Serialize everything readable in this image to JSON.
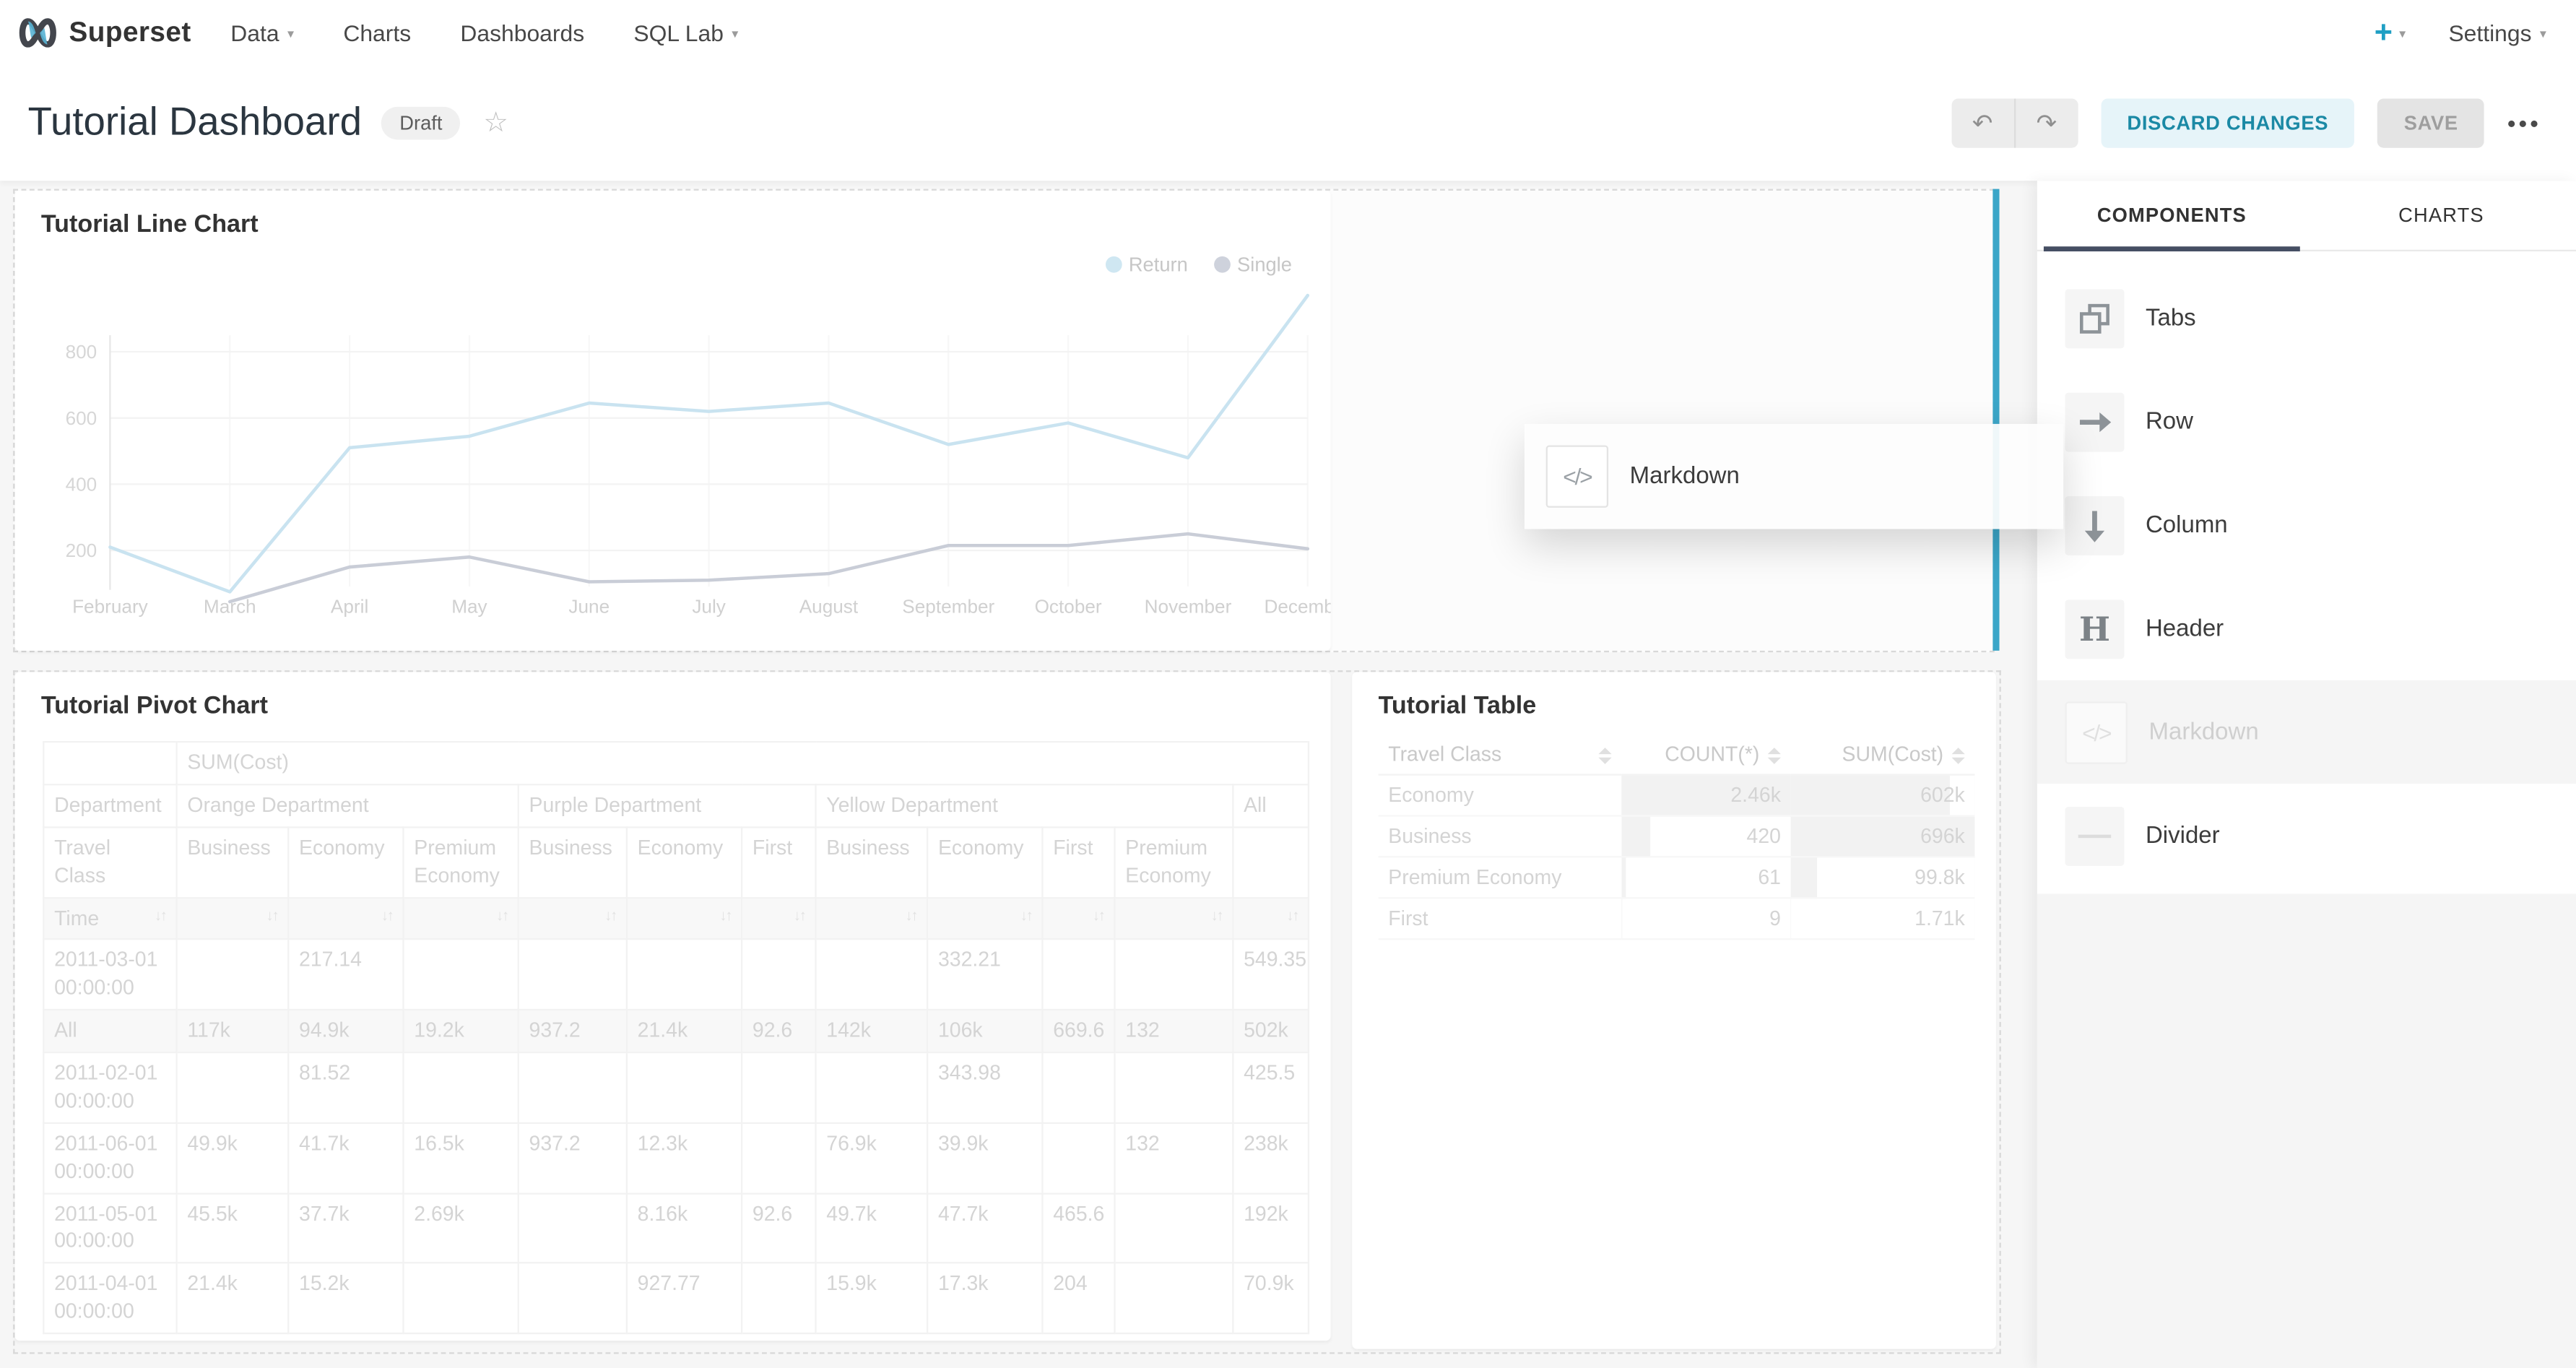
{
  "colors": {
    "accent_teal": "#20a7c9",
    "drop_indicator": "#3ba6c8",
    "tab_underline": "#454e63",
    "return_series": "#c9e3f0",
    "single_series": "#c9cdd7"
  },
  "navbar": {
    "brand": "Superset",
    "menu": [
      {
        "label": "Data",
        "caret": true
      },
      {
        "label": "Charts",
        "caret": false
      },
      {
        "label": "Dashboards",
        "caret": false
      },
      {
        "label": "SQL Lab",
        "caret": true
      }
    ],
    "plus": "+",
    "settings": "Settings"
  },
  "dash_header": {
    "title": "Tutorial Dashboard",
    "status_badge": "Draft",
    "star_glyph": "☆",
    "undo_glyph": "↶",
    "redo_glyph": "↷",
    "discard_label": "DISCARD CHANGES",
    "save_label": "SAVE",
    "more_glyph": "•••"
  },
  "sidebar": {
    "tabs": [
      {
        "label": "COMPONENTS",
        "active": true
      },
      {
        "label": "CHARTS",
        "active": false
      }
    ],
    "items": [
      {
        "label": "Tabs",
        "icon": "tabs-icon",
        "disabled": false
      },
      {
        "label": "Row",
        "icon": "row-arrow-icon",
        "disabled": false
      },
      {
        "label": "Column",
        "icon": "column-arrow-icon",
        "disabled": false
      },
      {
        "label": "Header",
        "icon": "header-icon",
        "disabled": false
      },
      {
        "label": "Markdown",
        "icon": "markdown-code-icon",
        "disabled": true
      },
      {
        "label": "Divider",
        "icon": "divider-icon",
        "disabled": false
      }
    ]
  },
  "drag_ghost": {
    "label": "Markdown",
    "icon": "markdown-code-icon",
    "code_glyph": "</>"
  },
  "line_chart": {
    "title": "Tutorial Line Chart",
    "legend": [
      {
        "label": "Return",
        "color": "#c9e3f0"
      },
      {
        "label": "Single",
        "color": "#c9cdd7"
      }
    ],
    "chart_data": {
      "type": "line",
      "x": [
        "February",
        "March",
        "April",
        "May",
        "June",
        "July",
        "August",
        "September",
        "October",
        "November",
        "December"
      ],
      "series": [
        {
          "name": "Return",
          "values": [
            210,
            75,
            510,
            545,
            645,
            620,
            645,
            520,
            585,
            480,
            970
          ]
        },
        {
          "name": "Single",
          "values": [
            null,
            45,
            150,
            180,
            105,
            110,
            130,
            215,
            215,
            250,
            205
          ]
        }
      ],
      "ylim": [
        0,
        1000
      ],
      "yticks": [
        200,
        400,
        600,
        800
      ],
      "grid": true,
      "legend_position": "top-right"
    }
  },
  "pivot_chart": {
    "title": "Tutorial Pivot Chart",
    "metric_header": "SUM(Cost)",
    "row_dim": "Department",
    "col_dim": "Travel Class",
    "time_label": "Time",
    "sort_glyph": "↓↑",
    "groups": [
      {
        "label": "Orange Department",
        "cols": [
          "Business",
          "Economy",
          "Premium Economy"
        ]
      },
      {
        "label": "Purple Department",
        "cols": [
          "Business",
          "Economy",
          "First"
        ]
      },
      {
        "label": "Yellow Department",
        "cols": [
          "Business",
          "Economy",
          "First",
          "Premium Economy"
        ]
      },
      {
        "label": "All",
        "cols": [
          ""
        ]
      }
    ],
    "rows": [
      {
        "label": "2011-03-01 00:00:00",
        "total": false,
        "values": [
          "",
          "217.14",
          "",
          "",
          "",
          "",
          "",
          "332.21",
          "",
          "",
          "549.35"
        ]
      },
      {
        "label": "All",
        "total": true,
        "values": [
          "117k",
          "94.9k",
          "19.2k",
          "937.2",
          "21.4k",
          "92.6",
          "142k",
          "106k",
          "669.6",
          "132",
          "502k"
        ]
      },
      {
        "label": "2011-02-01 00:00:00",
        "total": false,
        "values": [
          "",
          "81.52",
          "",
          "",
          "",
          "",
          "",
          "343.98",
          "",
          "",
          "425.5"
        ]
      },
      {
        "label": "2011-06-01 00:00:00",
        "total": false,
        "values": [
          "49.9k",
          "41.7k",
          "16.5k",
          "937.2",
          "12.3k",
          "",
          "76.9k",
          "39.9k",
          "",
          "132",
          "238k"
        ]
      },
      {
        "label": "2011-05-01 00:00:00",
        "total": false,
        "values": [
          "45.5k",
          "37.7k",
          "2.69k",
          "",
          "8.16k",
          "92.6",
          "49.7k",
          "47.7k",
          "465.6",
          "",
          "192k"
        ]
      },
      {
        "label": "2011-04-01 00:00:00",
        "total": false,
        "values": [
          "21.4k",
          "15.2k",
          "",
          "",
          "927.77",
          "",
          "15.9k",
          "17.3k",
          "204",
          "",
          "70.9k"
        ]
      }
    ]
  },
  "tutorial_table": {
    "title": "Tutorial Table",
    "columns": [
      "Travel Class",
      "COUNT(*)",
      "SUM(Cost)"
    ],
    "rows": [
      {
        "travel_class": "Economy",
        "count": "2.46k",
        "sum": "602k",
        "count_bar": 1.0,
        "sum_bar": 0.865
      },
      {
        "travel_class": "Business",
        "count": "420",
        "sum": "696k",
        "count_bar": 0.171,
        "sum_bar": 1.0
      },
      {
        "travel_class": "Premium Economy",
        "count": "61",
        "sum": "99.8k",
        "count_bar": 0.025,
        "sum_bar": 0.143
      },
      {
        "travel_class": "First",
        "count": "9",
        "sum": "1.71k",
        "count_bar": 0.004,
        "sum_bar": 0.002
      }
    ]
  }
}
